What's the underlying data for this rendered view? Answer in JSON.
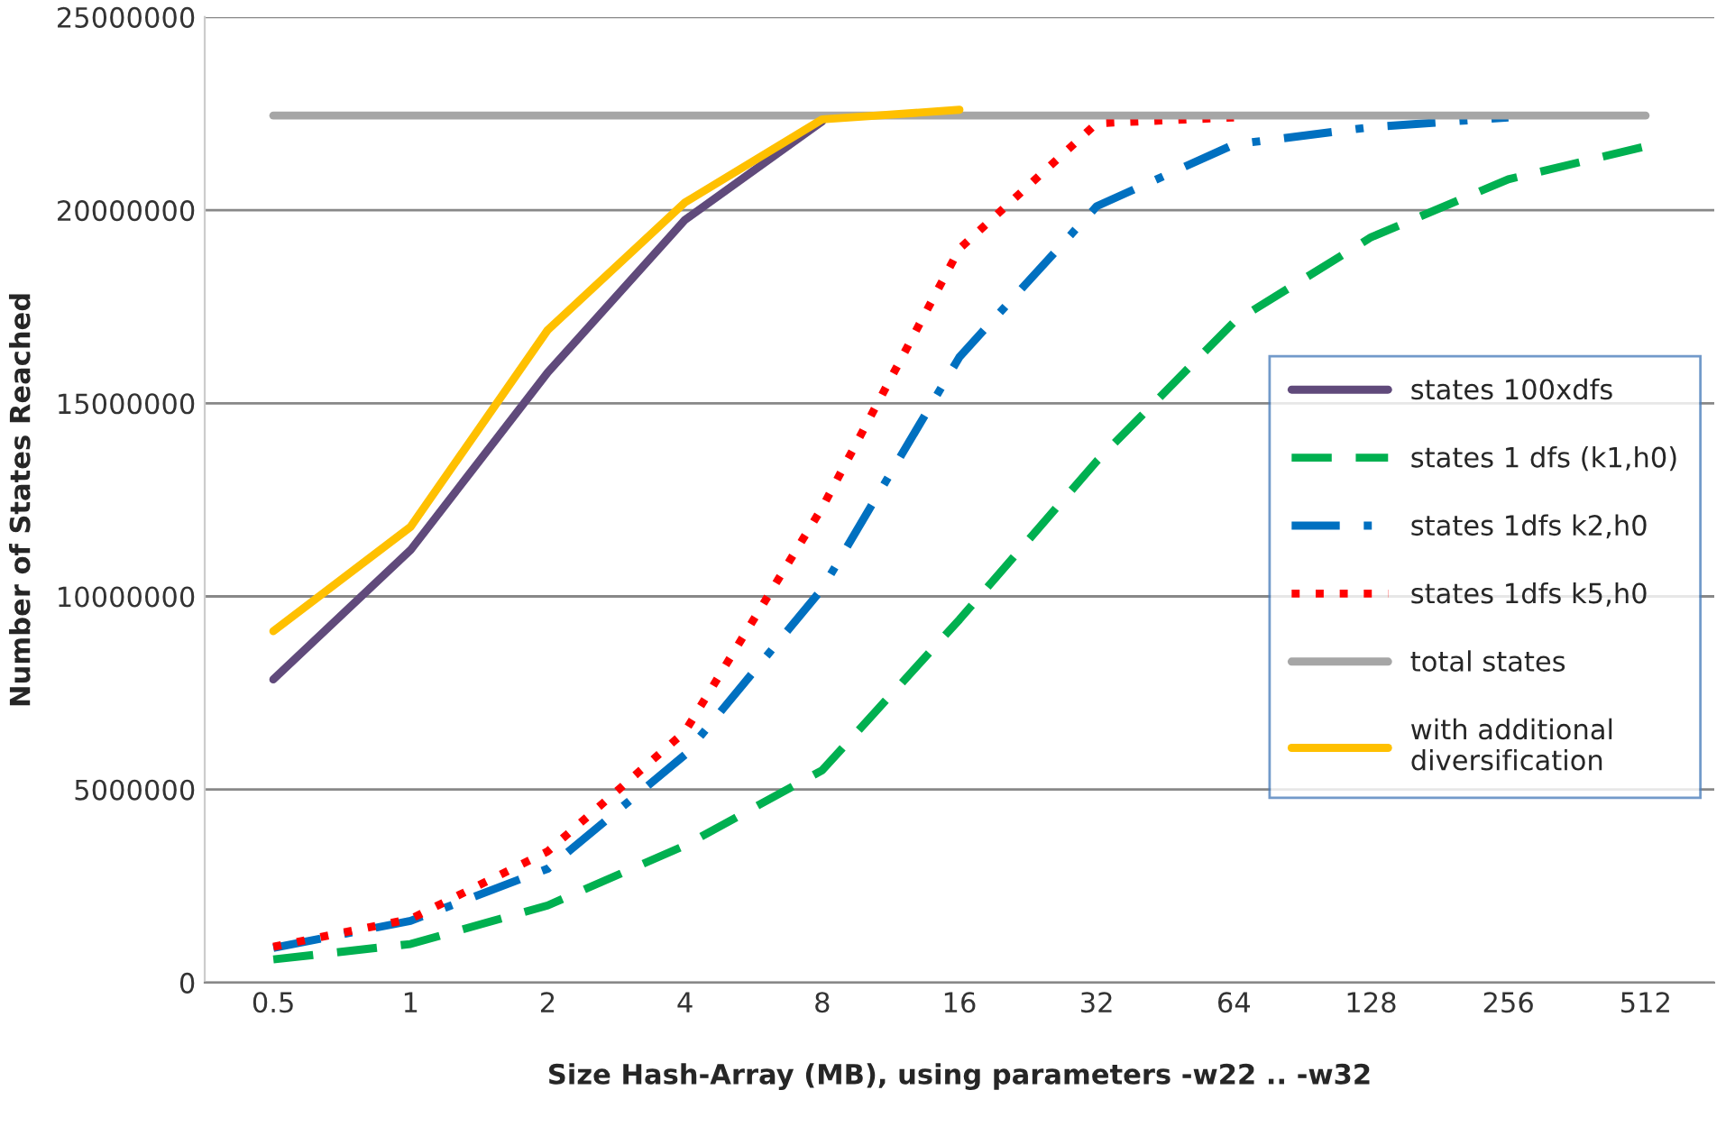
{
  "chart_data": {
    "type": "line",
    "categories": [
      "0.5",
      "1",
      "2",
      "4",
      "8",
      "16",
      "32",
      "64",
      "128",
      "256",
      "512"
    ],
    "xlabel": "Size Hash-Array (MB), using parameters -w22 .. -w32",
    "ylabel": "Number of States Reached",
    "ylim": [
      0,
      25000000
    ],
    "yticks": [
      0,
      5000000,
      10000000,
      15000000,
      20000000,
      25000000
    ],
    "grid": "y",
    "legend": "right",
    "marker": "none",
    "series": [
      {
        "name": "states 100xdfs",
        "color": "#604a7b",
        "line_style": "solid",
        "values": [
          7850000,
          11200000,
          15800000,
          19750000,
          22300000,
          null,
          null,
          null,
          null,
          null,
          null
        ]
      },
      {
        "name": "states 1 dfs (k1,h0)",
        "color": "#00b050",
        "line_style": "dashed",
        "values": [
          600000,
          1000000,
          2000000,
          3550000,
          5500000,
          9400000,
          13500000,
          17100000,
          19300000,
          20800000,
          21650000
        ]
      },
      {
        "name": "states 1dfs k2,h0",
        "color": "#0070c0",
        "line_style": "dashdot",
        "values": [
          900000,
          1600000,
          2950000,
          5900000,
          10200000,
          16200000,
          20100000,
          21700000,
          22150000,
          22400000,
          null
        ]
      },
      {
        "name": "states 1dfs k5,h0",
        "color": "#ff0000",
        "line_style": "dotted",
        "values": [
          930000,
          1650000,
          3400000,
          6500000,
          12300000,
          19000000,
          22250000,
          22400000,
          null,
          null,
          null
        ]
      },
      {
        "name": "total states",
        "color": "#a6a6a6",
        "line_style": "solid",
        "values": [
          22450000,
          22450000,
          22450000,
          22450000,
          22450000,
          22450000,
          22450000,
          22450000,
          22450000,
          22450000,
          22450000
        ]
      },
      {
        "name": "with additional\ndiversification",
        "color": "#ffc000",
        "line_style": "solid",
        "values": [
          9100000,
          11800000,
          16900000,
          20200000,
          22350000,
          22600000,
          null,
          null,
          null,
          null,
          null
        ]
      }
    ]
  }
}
